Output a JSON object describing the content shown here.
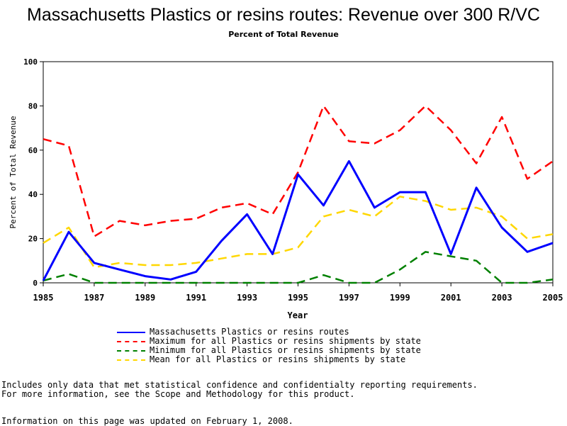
{
  "chart_data": {
    "type": "line",
    "title": "Massachusetts Plastics or resins routes: Revenue over 300 R/VC",
    "subtitle": "Percent of Total Revenue",
    "xlabel": "Year",
    "ylabel": "Percent of Total Revenue",
    "xlim": [
      1985,
      2005
    ],
    "ylim": [
      0,
      100
    ],
    "x_ticks": [
      "1985",
      "1987",
      "1989",
      "1991",
      "1993",
      "1995",
      "1997",
      "1999",
      "2001",
      "2003",
      "2005"
    ],
    "y_ticks": [
      "0",
      "20",
      "40",
      "60",
      "80",
      "100"
    ],
    "x": [
      1985,
      1986,
      1987,
      1988,
      1989,
      1990,
      1991,
      1992,
      1993,
      1994,
      1995,
      1996,
      1997,
      1998,
      1999,
      2000,
      2001,
      2002,
      2003,
      2004,
      2005
    ],
    "series": [
      {
        "name": "Massachusetts Plastics or resins routes",
        "color": "#0000ff",
        "style": "solid",
        "values": [
          1,
          23,
          9,
          6,
          3,
          1.5,
          5,
          19,
          31,
          13,
          49,
          35,
          55,
          34,
          41,
          41,
          13,
          43,
          25,
          14,
          18
        ]
      },
      {
        "name": "Maximum for all Plastics or resins shipments by state",
        "color": "#ff0000",
        "style": "dashed",
        "values": [
          65,
          62,
          21,
          28,
          26,
          28,
          29,
          34,
          36,
          31,
          50,
          80,
          64,
          63,
          69,
          80,
          69,
          54,
          75,
          47,
          55
        ]
      },
      {
        "name": "Minimum for all Plastics or resins shipments by state",
        "color": "#008000",
        "style": "dashed",
        "values": [
          1,
          4,
          0,
          0,
          0,
          0,
          0,
          0,
          0,
          0,
          0,
          3.5,
          0,
          0,
          6,
          14,
          12,
          10,
          0,
          0,
          1.5
        ]
      },
      {
        "name": "Mean for all Plastics or resins shipments by state",
        "color": "#ffd700",
        "style": "dashed",
        "values": [
          18,
          25,
          7,
          9,
          8,
          8,
          9,
          11,
          13,
          13,
          16,
          30,
          33,
          30,
          39,
          37,
          33,
          34,
          30,
          20,
          22
        ]
      }
    ],
    "grid": false,
    "legend_position": "bottom"
  },
  "notes": [
    "Includes only data that met statistical confidence and confidentialty reporting requirements.",
    "For more information, see the Scope and Methodology for this product.",
    "Information on this page was updated on February 1, 2008."
  ]
}
